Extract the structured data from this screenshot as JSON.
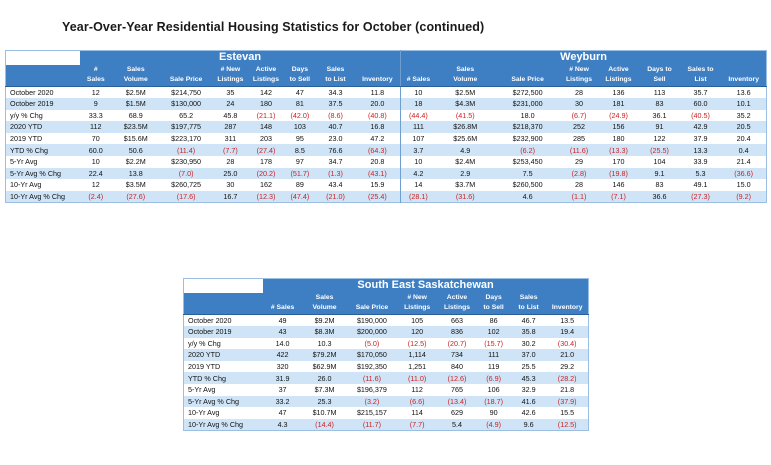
{
  "page": {
    "title": "Year-Over-Year Residential Housing Statistics for October (continued)"
  },
  "top_table": {
    "regions": [
      "Estevan",
      "Weyburn"
    ],
    "header_row1": [
      "#",
      "Sales",
      "",
      "# New",
      "Active",
      "Days",
      "Sales",
      "",
      "",
      "Sales",
      "",
      "# New",
      "Active",
      "Days to",
      "Sales to",
      ""
    ],
    "header_row2": [
      "Sales",
      "Volume",
      "Sale Price",
      "Listings",
      "Listings",
      "to Sell",
      "to List",
      "Inventory",
      "# Sales",
      "Volume",
      "Sale Price",
      "Listings",
      "Listings",
      "Sell",
      "List",
      "Inventory"
    ],
    "rows": [
      {
        "label": "October 2020",
        "values": [
          "12",
          "$2.5M",
          "$214,750",
          "35",
          "142",
          "47",
          "34.3",
          "11.8",
          "10",
          "$2.5M",
          "$272,500",
          "28",
          "136",
          "113",
          "35.7",
          "13.6"
        ]
      },
      {
        "label": "October 2019",
        "values": [
          "9",
          "$1.5M",
          "$130,000",
          "24",
          "180",
          "81",
          "37.5",
          "20.0",
          "18",
          "$4.3M",
          "$231,000",
          "30",
          "181",
          "83",
          "60.0",
          "10.1"
        ]
      },
      {
        "label": "y/y % Chg",
        "values": [
          "33.3",
          "68.9",
          "65.2",
          "45.8",
          "(21.1)",
          "(42.0)",
          "(8.6)",
          "(40.8)",
          "(44.4)",
          "(41.5)",
          "18.0",
          "(6.7)",
          "(24.9)",
          "36.1",
          "(40.5)",
          "35.2"
        ]
      },
      {
        "label": "2020 YTD",
        "values": [
          "112",
          "$23.5M",
          "$197,775",
          "287",
          "148",
          "103",
          "40.7",
          "16.8",
          "111",
          "$26.8M",
          "$218,370",
          "252",
          "156",
          "91",
          "42.9",
          "20.5"
        ]
      },
      {
        "label": "2019 YTD",
        "values": [
          "70",
          "$15.6M",
          "$223,170",
          "311",
          "203",
          "95",
          "23.0",
          "47.2",
          "107",
          "$25.6M",
          "$232,900",
          "285",
          "180",
          "122",
          "37.9",
          "20.4"
        ]
      },
      {
        "label": "YTD % Chg",
        "values": [
          "60.0",
          "50.6",
          "(11.4)",
          "(7.7)",
          "(27.4)",
          "8.5",
          "76.6",
          "(64.3)",
          "3.7",
          "4.9",
          "(6.2)",
          "(11.6)",
          "(13.3)",
          "(25.5)",
          "13.3",
          "0.4"
        ]
      },
      {
        "label": "5-Yr Avg",
        "values": [
          "10",
          "$2.2M",
          "$230,950",
          "28",
          "178",
          "97",
          "34.7",
          "20.8",
          "10",
          "$2.4M",
          "$253,450",
          "29",
          "170",
          "104",
          "33.9",
          "21.4"
        ]
      },
      {
        "label": "5-Yr Avg % Chg",
        "values": [
          "22.4",
          "13.8",
          "(7.0)",
          "25.0",
          "(20.2)",
          "(51.7)",
          "(1.3)",
          "(43.1)",
          "4.2",
          "2.9",
          "7.5",
          "(2.8)",
          "(19.8)",
          "9.1",
          "5.3",
          "(36.6)"
        ]
      },
      {
        "label": "10-Yr Avg",
        "values": [
          "12",
          "$3.5M",
          "$260,725",
          "30",
          "162",
          "89",
          "43.4",
          "15.9",
          "14",
          "$3.7M",
          "$260,500",
          "28",
          "146",
          "83",
          "49.1",
          "15.0"
        ]
      },
      {
        "label": "10-Yr Avg % Chg",
        "values": [
          "(2.4)",
          "(27.6)",
          "(17.6)",
          "16.7",
          "(12.3)",
          "(47.4)",
          "(21.0)",
          "(25.4)",
          "(28.1)",
          "(31.6)",
          "4.6",
          "(1.1)",
          "(7.1)",
          "36.6",
          "(27.3)",
          "(9.2)"
        ]
      }
    ]
  },
  "bottom_table": {
    "region": "South East Saskatchewan",
    "header_row1": [
      "",
      "Sales",
      "",
      "# New",
      "Active",
      "Days",
      "Sales",
      ""
    ],
    "header_row2": [
      "# Sales",
      "Volume",
      "Sale Price",
      "Listings",
      "Listings",
      "to Sell",
      "to List",
      "Inventory"
    ],
    "rows": [
      {
        "label": "October 2020",
        "values": [
          "49",
          "$9.2M",
          "$190,000",
          "105",
          "663",
          "86",
          "46.7",
          "13.5"
        ]
      },
      {
        "label": "October 2019",
        "values": [
          "43",
          "$8.3M",
          "$200,000",
          "120",
          "836",
          "102",
          "35.8",
          "19.4"
        ]
      },
      {
        "label": "y/y % Chg",
        "values": [
          "14.0",
          "10.3",
          "(5.0)",
          "(12.5)",
          "(20.7)",
          "(15.7)",
          "30.2",
          "(30.4)"
        ]
      },
      {
        "label": "2020 YTD",
        "values": [
          "422",
          "$79.2M",
          "$170,050",
          "1,114",
          "734",
          "111",
          "37.0",
          "21.0"
        ]
      },
      {
        "label": "2019 YTD",
        "values": [
          "320",
          "$62.9M",
          "$192,350",
          "1,251",
          "840",
          "119",
          "25.5",
          "29.2"
        ]
      },
      {
        "label": "YTD % Chg",
        "values": [
          "31.9",
          "26.0",
          "(11.6)",
          "(11.0)",
          "(12.6)",
          "(6.9)",
          "45.3",
          "(28.2)"
        ]
      },
      {
        "label": "5-Yr Avg",
        "values": [
          "37",
          "$7.3M",
          "$196,379",
          "112",
          "765",
          "106",
          "32.9",
          "21.8"
        ]
      },
      {
        "label": "5-Yr Avg % Chg",
        "values": [
          "33.2",
          "25.3",
          "(3.2)",
          "(6.6)",
          "(13.4)",
          "(18.7)",
          "41.6",
          "(37.9)"
        ]
      },
      {
        "label": "10-Yr Avg",
        "values": [
          "47",
          "$10.7M",
          "$215,157",
          "114",
          "629",
          "90",
          "42.6",
          "15.5"
        ]
      },
      {
        "label": "10-Yr Avg % Chg",
        "values": [
          "4.3",
          "(14.4)",
          "(11.7)",
          "(7.7)",
          "5.4",
          "(4.9)",
          "9.6",
          "(12.5)"
        ]
      }
    ]
  },
  "colors": {
    "header_blue": "#3e7fc4",
    "row_light_blue": "#cfe5f7",
    "negative_red": "#cc1f1f"
  }
}
